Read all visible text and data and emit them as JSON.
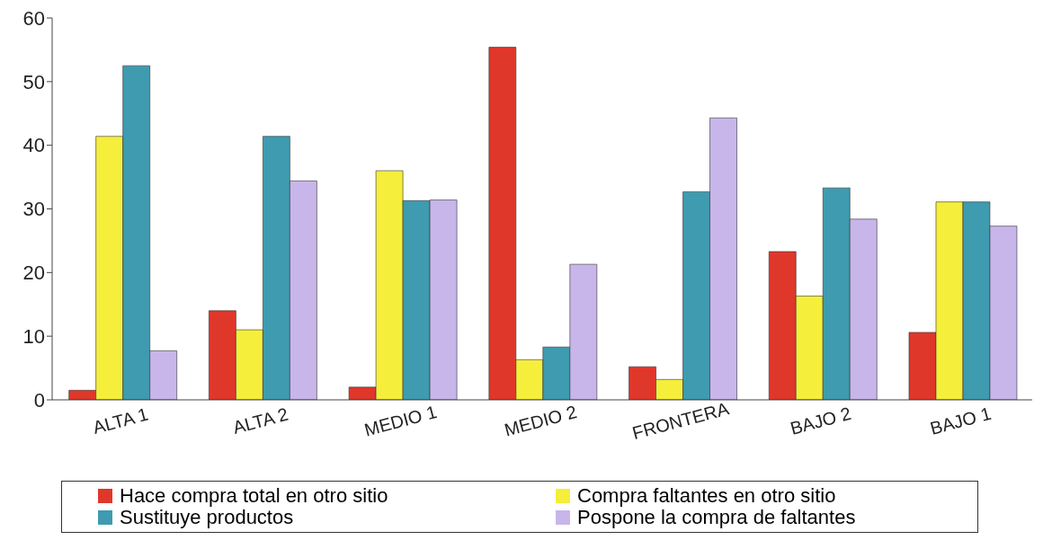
{
  "chart_data": {
    "type": "bar",
    "categories": [
      "ALTA 1",
      "ALTA 2",
      "MEDIO 1",
      "MEDIO 2",
      "FRONTERA",
      "BAJO 2",
      "BAJO 1"
    ],
    "series": [
      {
        "name": "Hace compra total en otro sitio",
        "color": "#e0372b",
        "values": [
          1.5,
          14,
          2,
          55.4,
          5.2,
          23.3,
          10.6
        ]
      },
      {
        "name": "Compra faltantes en otro sitio",
        "color": "#f5ee3a",
        "values": [
          41.4,
          11,
          36,
          6.3,
          3.2,
          16.3,
          31.1
        ]
      },
      {
        "name": "Sustituye productos",
        "color": "#3e9bb0",
        "values": [
          52.5,
          41.4,
          31.3,
          8.3,
          32.7,
          33.3,
          31.1
        ]
      },
      {
        "name": "Pospone la compra de faltantes",
        "color": "#c8b6ea",
        "values": [
          7.7,
          34.4,
          31.4,
          21.3,
          44.3,
          28.4,
          27.3
        ]
      }
    ],
    "ylim": [
      0,
      60
    ],
    "yticks": [
      0,
      10,
      20,
      30,
      40,
      50,
      60
    ],
    "legend": "bottom"
  }
}
